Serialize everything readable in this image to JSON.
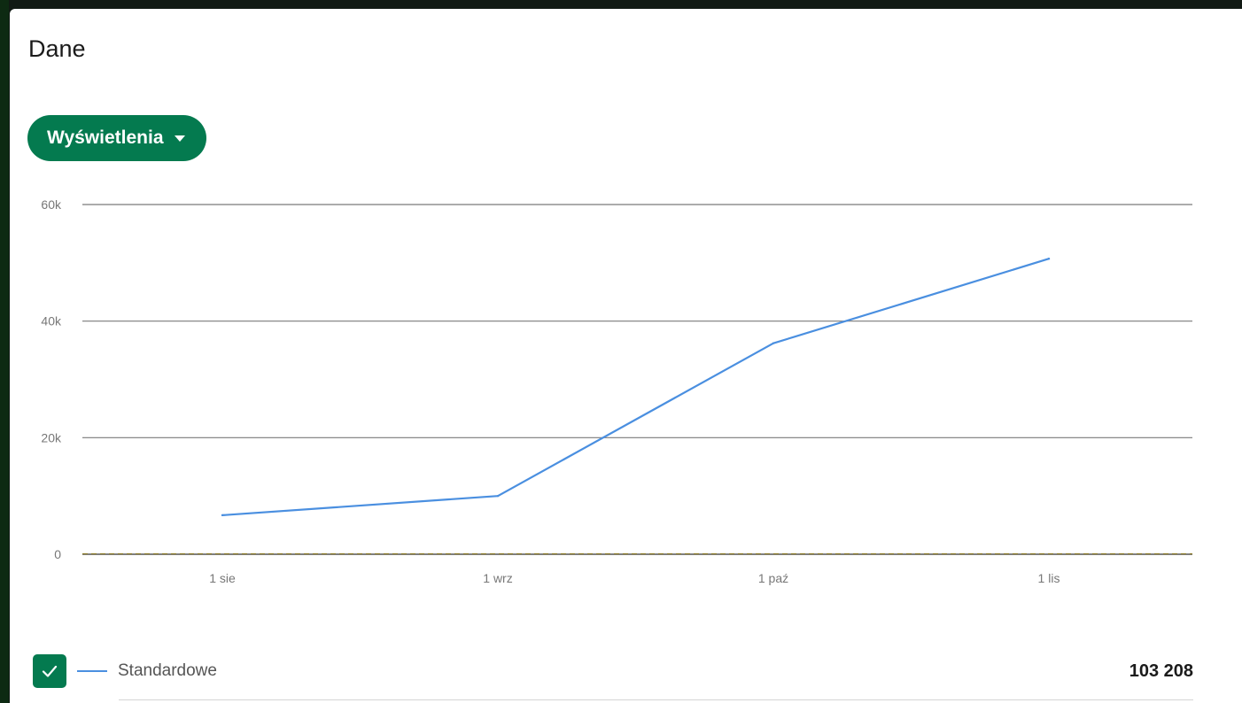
{
  "card": {
    "title": "Dane"
  },
  "metric_selector": {
    "label": "Wyświetlenia",
    "icon": "caret-down-icon"
  },
  "colors": {
    "accent": "#047a4f",
    "series": "#4a8fe0",
    "baseline": "#8a7a2a",
    "grid": "#7a7a7a"
  },
  "chart_data": {
    "type": "line",
    "title": "",
    "xlabel": "",
    "ylabel": "",
    "categories": [
      "1 sie",
      "1 wrz",
      "1 paź",
      "1 lis"
    ],
    "series": [
      {
        "name": "Standardowe",
        "values": [
          6700,
          10000,
          36200,
          50700
        ]
      }
    ],
    "ylim": [
      0,
      60000
    ],
    "yticks": [
      0,
      20000,
      40000,
      60000
    ],
    "ytick_labels": [
      "0",
      "20k",
      "40k",
      "60k"
    ],
    "grid": true,
    "legend": "bottom"
  },
  "legend": {
    "items": [
      {
        "label": "Standardowe",
        "checked": true,
        "total": "103 208"
      }
    ]
  }
}
